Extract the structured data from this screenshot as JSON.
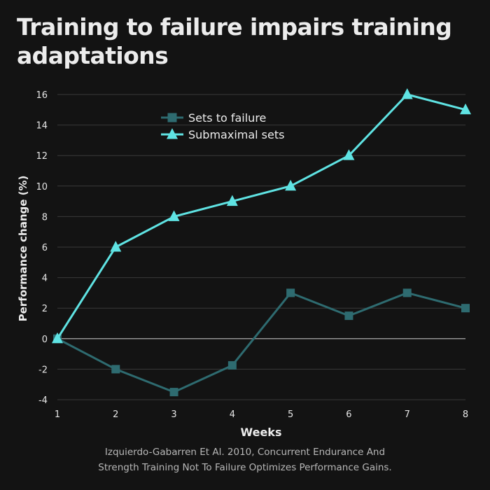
{
  "colors": {
    "background": "#131313",
    "grid": "#3a3a3a",
    "zero_line": "#bdbdbd",
    "sets_to_failure": "#2e6b70",
    "submaximal_sets": "#5fe3e3"
  },
  "caption": {
    "line1": "Izquierdo-Gabarren Et Al. 2010, Concurrent Endurance And",
    "line2": "Strength Training Not To Failure Optimizes Performance Gains."
  },
  "chart_data": {
    "type": "line",
    "title": "Training to failure impairs training adaptations",
    "xlabel": "Weeks",
    "ylabel": "Performance change (%)",
    "x": [
      1,
      2,
      3,
      4,
      5,
      6,
      7,
      8
    ],
    "xlim": [
      1,
      8
    ],
    "ylim": [
      -4,
      16
    ],
    "yticks": [
      -4,
      -2,
      0,
      2,
      4,
      6,
      8,
      10,
      12,
      14,
      16
    ],
    "grid": "horizontal",
    "legend_position": "top-center",
    "series": [
      {
        "name": "Sets to failure",
        "marker": "square",
        "color": "#2e6b70",
        "values": [
          0,
          -2,
          -3.5,
          -1.75,
          3,
          1.5,
          3,
          2
        ]
      },
      {
        "name": "Submaximal sets",
        "marker": "triangle",
        "color": "#5fe3e3",
        "values": [
          0,
          6,
          8,
          9,
          10,
          12,
          16,
          15
        ]
      }
    ]
  }
}
